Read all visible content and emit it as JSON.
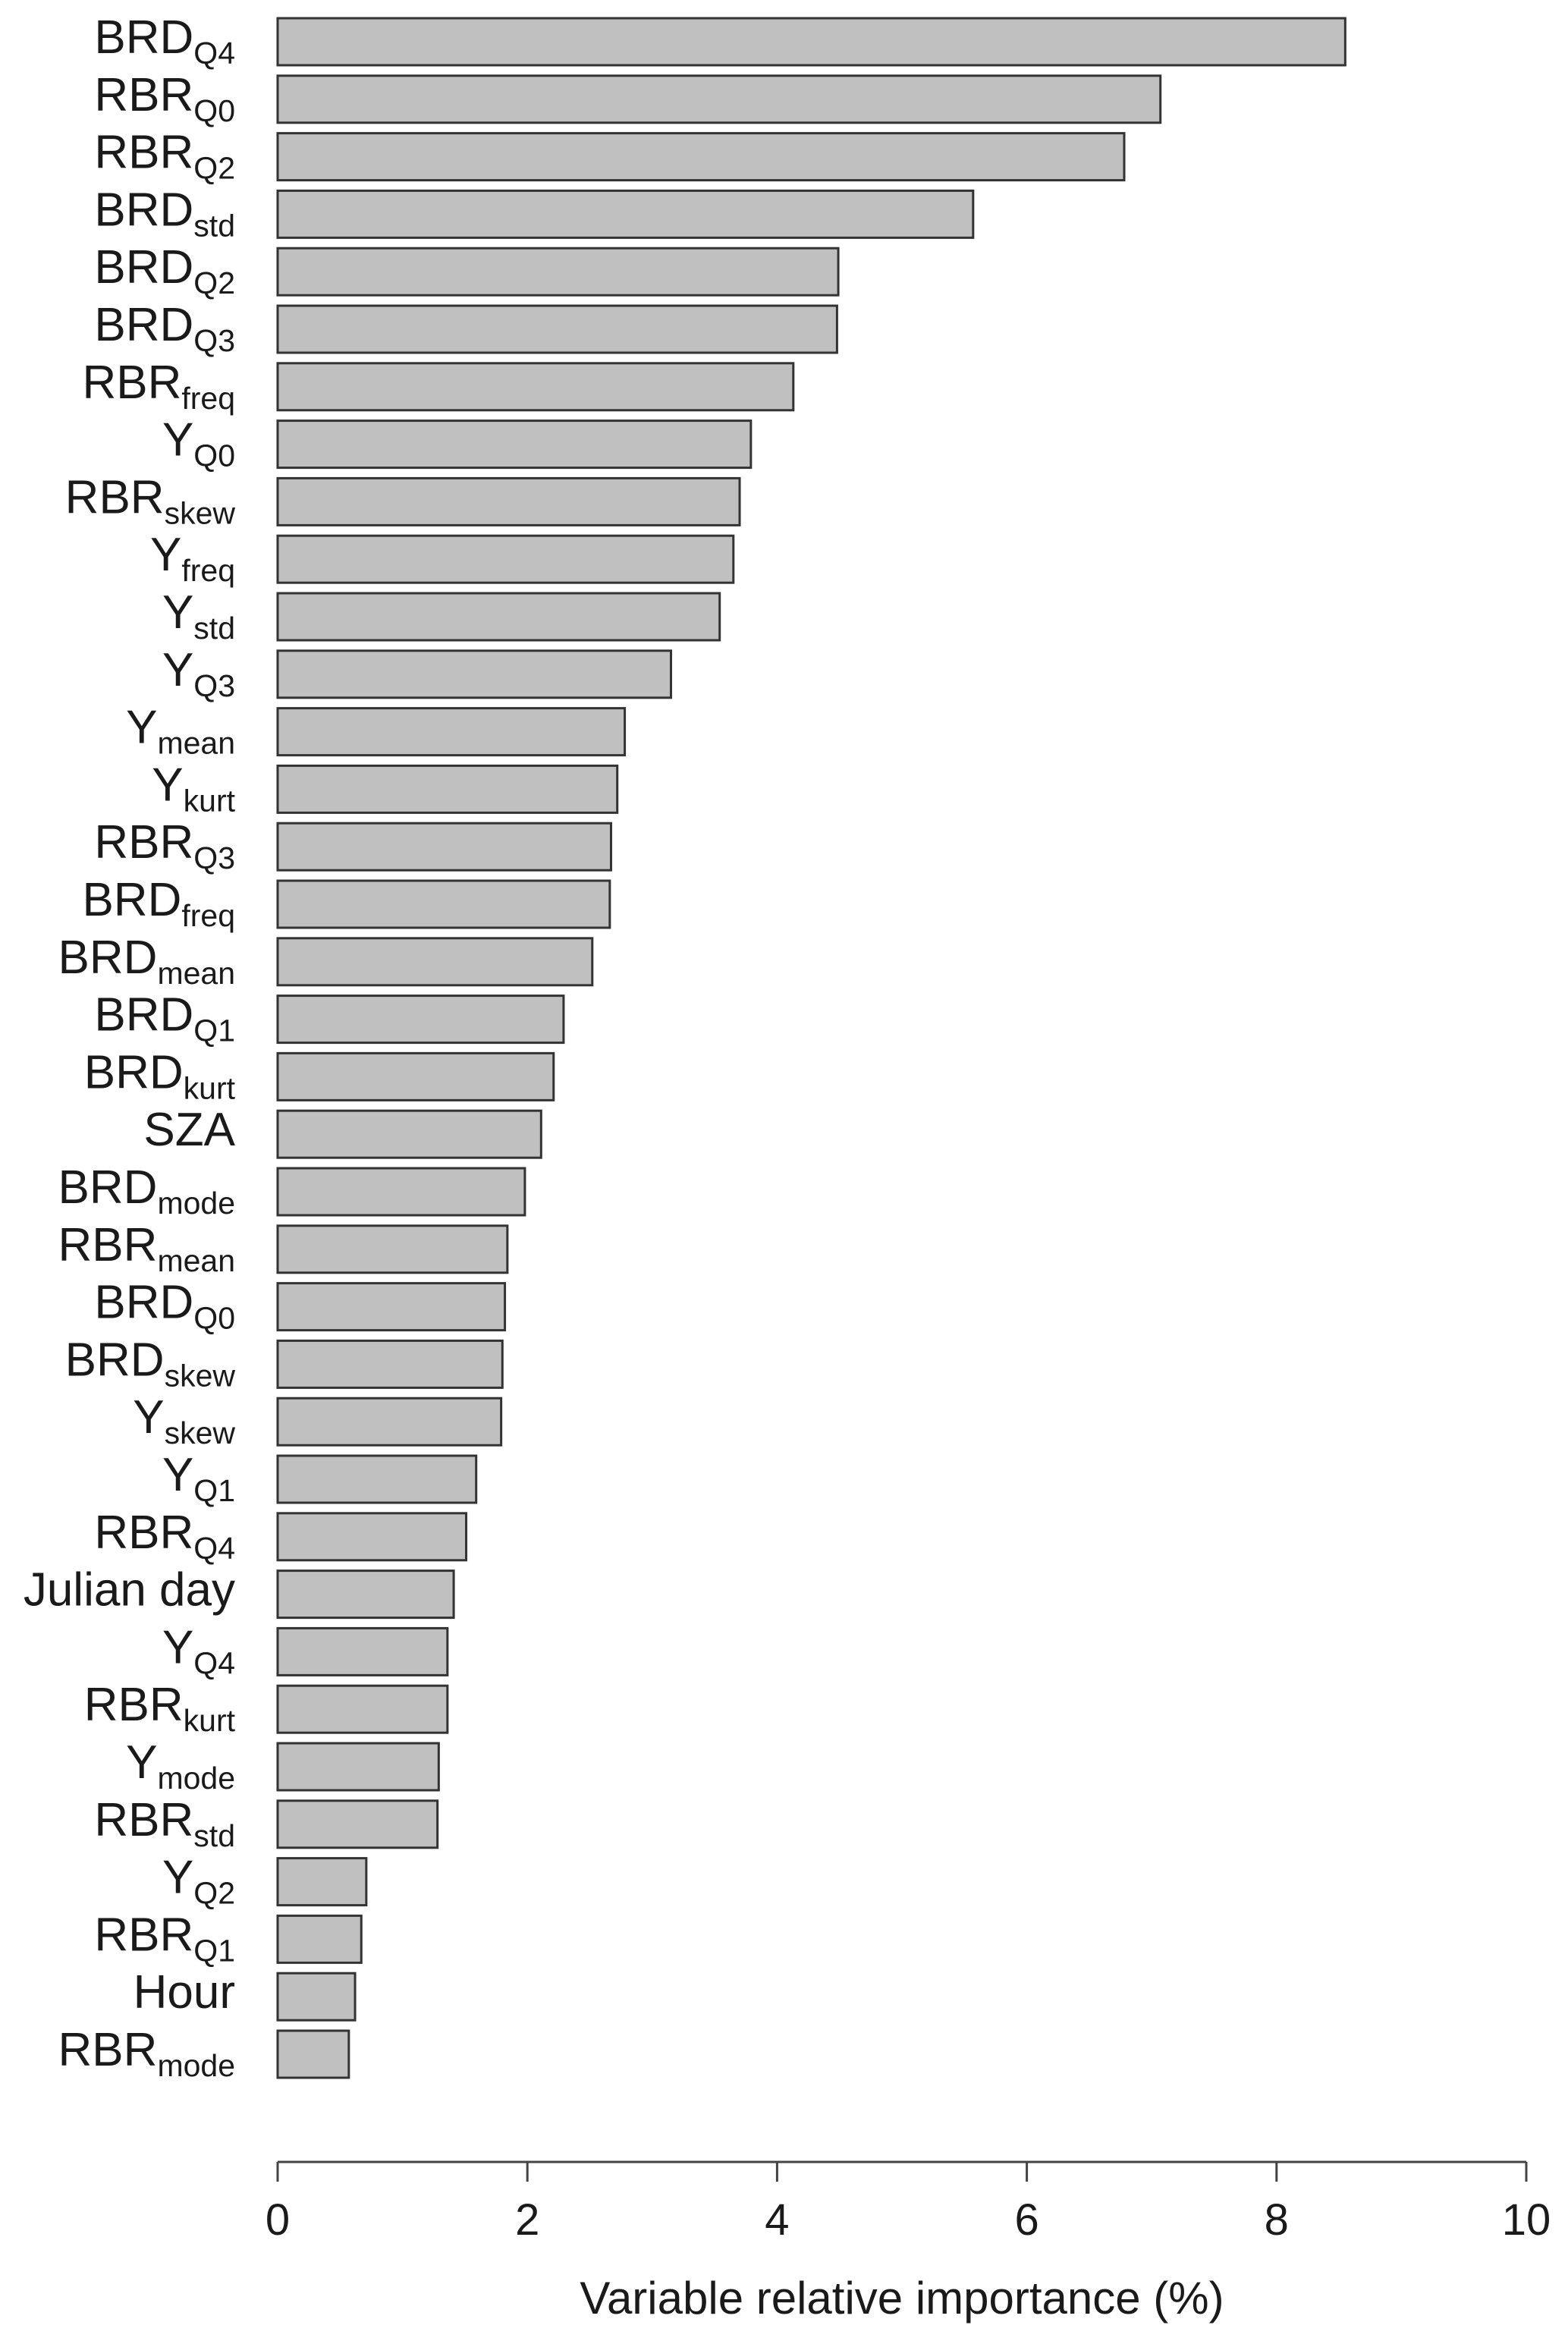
{
  "chart_data": {
    "type": "bar",
    "orientation": "horizontal",
    "categories": [
      {
        "base": "BRD",
        "sub": "Q4"
      },
      {
        "base": "RBR",
        "sub": "Q0"
      },
      {
        "base": "RBR",
        "sub": "Q2"
      },
      {
        "base": "BRD",
        "sub": "std"
      },
      {
        "base": "BRD",
        "sub": "Q2"
      },
      {
        "base": "BRD",
        "sub": "Q3"
      },
      {
        "base": "RBR",
        "sub": "freq"
      },
      {
        "base": "Y",
        "sub": "Q0"
      },
      {
        "base": "RBR",
        "sub": "skew"
      },
      {
        "base": "Y",
        "sub": "freq"
      },
      {
        "base": "Y",
        "sub": "std"
      },
      {
        "base": "Y",
        "sub": "Q3"
      },
      {
        "base": "Y",
        "sub": "mean"
      },
      {
        "base": "Y",
        "sub": "kurt"
      },
      {
        "base": "RBR",
        "sub": "Q3"
      },
      {
        "base": "BRD",
        "sub": "freq"
      },
      {
        "base": "BRD",
        "sub": "mean"
      },
      {
        "base": "BRD",
        "sub": "Q1"
      },
      {
        "base": "BRD",
        "sub": "kurt"
      },
      {
        "base": "SZA",
        "sub": ""
      },
      {
        "base": "BRD",
        "sub": "mode"
      },
      {
        "base": "RBR",
        "sub": "mean"
      },
      {
        "base": "BRD",
        "sub": "Q0"
      },
      {
        "base": "BRD",
        "sub": "skew"
      },
      {
        "base": "Y",
        "sub": "skew"
      },
      {
        "base": "Y",
        "sub": "Q1"
      },
      {
        "base": "RBR",
        "sub": "Q4"
      },
      {
        "base": "Julian day",
        "sub": ""
      },
      {
        "base": "Y",
        "sub": "Q4"
      },
      {
        "base": "RBR",
        "sub": "kurt"
      },
      {
        "base": "Y",
        "sub": "mode"
      },
      {
        "base": "RBR",
        "sub": "std"
      },
      {
        "base": "Y",
        "sub": "Q2"
      },
      {
        "base": "RBR",
        "sub": "Q1"
      },
      {
        "base": "Hour",
        "sub": ""
      },
      {
        "base": "RBR",
        "sub": "mode"
      }
    ],
    "values": [
      8.55,
      7.07,
      6.78,
      5.57,
      4.49,
      4.48,
      4.13,
      3.79,
      3.7,
      3.65,
      3.54,
      3.15,
      2.78,
      2.72,
      2.67,
      2.66,
      2.52,
      2.29,
      2.21,
      2.11,
      1.98,
      1.84,
      1.82,
      1.8,
      1.79,
      1.59,
      1.51,
      1.41,
      1.36,
      1.36,
      1.29,
      1.28,
      0.71,
      0.67,
      0.62,
      0.57
    ],
    "xlabel": "Variable relative importance (%)",
    "ylabel": "",
    "title": "",
    "xlim": [
      0,
      10
    ],
    "xticks": [
      0,
      2,
      4,
      6,
      8,
      10
    ],
    "grid": false
  }
}
